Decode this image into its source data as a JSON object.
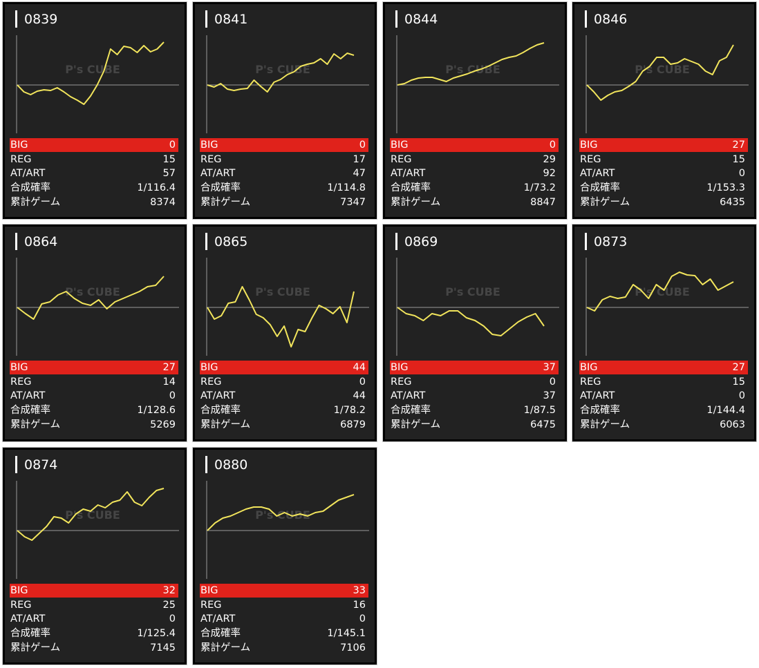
{
  "watermark": "P's CUBE",
  "labels": [
    "BIG",
    "REG",
    "AT/ART",
    "合成確率",
    "累計ゲーム"
  ],
  "ylim": [
    -70,
    70
  ],
  "cards": [
    {
      "title": "0839",
      "big": 0,
      "reg": 15,
      "at": 57,
      "prob": "1/116.4",
      "games": 8374,
      "line": [
        0,
        -10,
        -14,
        -9,
        -7,
        -8,
        -4,
        -10,
        -17,
        -22,
        -28,
        -16,
        0,
        20,
        52,
        44,
        56,
        54,
        47,
        57,
        48,
        52,
        62
      ]
    },
    {
      "title": "0841",
      "big": 0,
      "reg": 17,
      "at": 47,
      "prob": "1/114.8",
      "games": 7347,
      "line": [
        0,
        -3,
        2,
        -6,
        -8,
        -6,
        -5,
        7,
        -2,
        -10,
        4,
        8,
        15,
        19,
        27,
        30,
        32,
        38,
        30,
        45,
        38,
        46,
        43
      ]
    },
    {
      "title": "0844",
      "big": 0,
      "reg": 29,
      "at": 92,
      "prob": "1/73.2",
      "games": 8847,
      "line": [
        0,
        2,
        7,
        10,
        11,
        11,
        8,
        5,
        10,
        13,
        16,
        20,
        23,
        27,
        32,
        37,
        40,
        42,
        47,
        53,
        58,
        61
      ]
    },
    {
      "title": "0846",
      "big": 27,
      "reg": 15,
      "at": 0,
      "prob": "1/153.3",
      "games": 6435,
      "line": [
        0,
        -10,
        -22,
        -15,
        -10,
        -8,
        -2,
        5,
        20,
        27,
        40,
        40,
        30,
        32,
        38,
        34,
        30,
        20,
        15,
        35,
        40,
        58
      ]
    },
    {
      "title": "0864",
      "big": 27,
      "reg": 14,
      "at": 0,
      "prob": "1/128.6",
      "games": 5269,
      "line": [
        0,
        -9,
        -17,
        5,
        8,
        18,
        23,
        13,
        6,
        3,
        11,
        -2,
        8,
        13,
        18,
        23,
        30,
        32,
        45
      ]
    },
    {
      "title": "0865",
      "big": 44,
      "reg": 0,
      "at": 44,
      "prob": "1/78.2",
      "games": 6879,
      "line": [
        0,
        -17,
        -12,
        6,
        8,
        30,
        11,
        -10,
        -15,
        -25,
        -42,
        -27,
        -57,
        -32,
        -35,
        -15,
        3,
        -2,
        -9,
        1,
        -22,
        23
      ]
    },
    {
      "title": "0869",
      "big": 37,
      "reg": 0,
      "at": 37,
      "prob": "1/87.5",
      "games": 6475,
      "line": [
        0,
        -9,
        -12,
        -19,
        -9,
        -12,
        -5,
        -5,
        -15,
        -19,
        -27,
        -39,
        -41,
        -31,
        -21,
        -14,
        -9,
        -27
      ]
    },
    {
      "title": "0873",
      "big": 27,
      "reg": 15,
      "at": 0,
      "prob": "1/144.4",
      "games": 6063,
      "line": [
        0,
        -5,
        11,
        16,
        13,
        15,
        33,
        25,
        13,
        33,
        25,
        45,
        51,
        47,
        46,
        33,
        41,
        25,
        31,
        37
      ]
    },
    {
      "title": "0874",
      "big": 32,
      "reg": 25,
      "at": 0,
      "prob": "1/125.4",
      "games": 7145,
      "line": [
        0,
        -9,
        -14,
        -4,
        6,
        20,
        18,
        11,
        24,
        31,
        28,
        37,
        33,
        41,
        44,
        56,
        41,
        36,
        48,
        58,
        61
      ]
    },
    {
      "title": "0880",
      "big": 33,
      "reg": 16,
      "at": 0,
      "prob": "1/145.1",
      "games": 7106,
      "line": [
        0,
        11,
        18,
        21,
        26,
        31,
        34,
        34,
        31,
        21,
        26,
        21,
        24,
        21,
        26,
        28,
        36,
        44,
        48,
        52
      ]
    }
  ]
}
